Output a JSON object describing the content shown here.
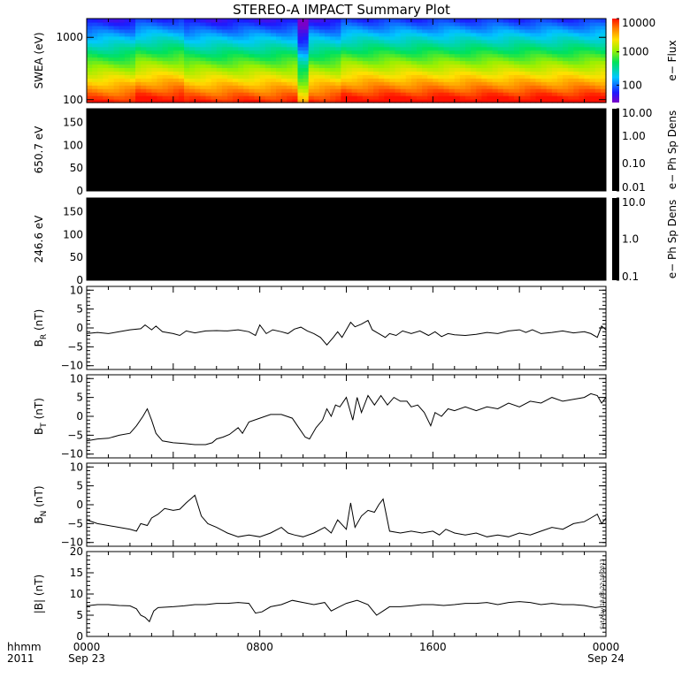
{
  "chart_data": {
    "title": "STEREO-A IMPACT Summary Plot",
    "x_axis": {
      "row1_label": "hhmm",
      "row2_label": "2011",
      "ticks": [
        {
          "hours": 0,
          "time": "0000",
          "date": "Sep 23"
        },
        {
          "hours": 8,
          "time": "0800",
          "date": ""
        },
        {
          "hours": 16,
          "time": "1600",
          "date": ""
        },
        {
          "hours": 24,
          "time": "0000",
          "date": "Sep 24"
        }
      ],
      "range_hours": [
        0,
        24
      ]
    },
    "timestamp_text": "Sat May 18 06:22:19 2013",
    "panels": [
      {
        "id": "swea",
        "type": "heatmap",
        "ylabel": "SWEA (eV)",
        "y_scale": "log",
        "ylim": [
          90,
          2000
        ],
        "y_ticks": [
          100,
          1000
        ],
        "y_tick_labels": [
          "100",
          "1000"
        ],
        "colorbar": {
          "label": "e− Flux",
          "scale": "log",
          "range": [
            30,
            10000
          ],
          "ticks": [
            100,
            1000,
            10000
          ],
          "tick_labels": [
            "100",
            "1000",
            "10000"
          ]
        },
        "energy_profile": "flux falls with energy; red/orange near 100 eV, green near 300–500 eV, blue above 1000 eV",
        "depressed_intervals_hours": [
          [
            9.7,
            10.3
          ]
        ],
        "enhanced_intervals_hours": [
          [
            2.2,
            4.4
          ],
          [
            11.8,
            24
          ]
        ]
      },
      {
        "id": "pad650",
        "type": "heatmap",
        "ylabel": "650.7 eV",
        "ylim": [
          0,
          180
        ],
        "y_ticks": [
          0,
          50,
          100,
          150
        ],
        "y_tick_labels": [
          "0",
          "50",
          "100",
          "150"
        ],
        "fill_color": "#000000",
        "colorbar": {
          "label": "e− Ph Sp Dens",
          "scale": "log",
          "ticks": [
            0.01,
            0.1,
            1,
            10
          ],
          "tick_labels": [
            "0.01",
            "0.10",
            "1.00",
            "10.00"
          ]
        }
      },
      {
        "id": "pad246",
        "type": "heatmap",
        "ylabel": "246.6 eV",
        "ylim": [
          0,
          180
        ],
        "y_ticks": [
          0,
          50,
          100,
          150
        ],
        "y_tick_labels": [
          "0",
          "50",
          "100",
          "150"
        ],
        "fill_color": "#000000",
        "colorbar": {
          "label": "e− Ph Sp Dens",
          "scale": "log",
          "ticks": [
            0.1,
            1,
            10
          ],
          "tick_labels": [
            "0.1",
            "1.0",
            "10.0"
          ]
        }
      },
      {
        "id": "br",
        "type": "line",
        "ylabel_main": "B",
        "ylabel_sub": "R",
        "ylabel_unit": " (nT)",
        "ylim": [
          -11,
          11
        ],
        "y_ticks": [
          -10,
          -5,
          0,
          5,
          10
        ],
        "y_tick_labels": [
          "−10",
          "−5",
          "0",
          "5",
          "10"
        ],
        "points": [
          [
            0,
            -1.5
          ],
          [
            0.5,
            -1.2
          ],
          [
            1,
            -1.5
          ],
          [
            1.5,
            -1
          ],
          [
            2,
            -0.5
          ],
          [
            2.5,
            -0.2
          ],
          [
            2.7,
            0.8
          ],
          [
            3,
            -0.5
          ],
          [
            3.2,
            0.5
          ],
          [
            3.5,
            -1
          ],
          [
            4,
            -1.5
          ],
          [
            4.3,
            -2
          ],
          [
            4.6,
            -0.8
          ],
          [
            5,
            -1.3
          ],
          [
            5.5,
            -0.8
          ],
          [
            6,
            -0.7
          ],
          [
            6.5,
            -0.8
          ],
          [
            7,
            -0.5
          ],
          [
            7.5,
            -1
          ],
          [
            7.8,
            -2
          ],
          [
            8,
            0.8
          ],
          [
            8.3,
            -1.5
          ],
          [
            8.6,
            -0.5
          ],
          [
            9,
            -1
          ],
          [
            9.3,
            -1.5
          ],
          [
            9.6,
            -0.3
          ],
          [
            9.9,
            0.2
          ],
          [
            10.2,
            -0.8
          ],
          [
            10.5,
            -1.5
          ],
          [
            10.8,
            -2.5
          ],
          [
            11.1,
            -4.5
          ],
          [
            11.4,
            -2.5
          ],
          [
            11.6,
            -1
          ],
          [
            11.8,
            -2.5
          ],
          [
            12,
            -0.5
          ],
          [
            12.2,
            1.5
          ],
          [
            12.4,
            0.3
          ],
          [
            12.7,
            1
          ],
          [
            13,
            2
          ],
          [
            13.2,
            -0.5
          ],
          [
            13.5,
            -1.5
          ],
          [
            13.8,
            -2.5
          ],
          [
            14,
            -1.5
          ],
          [
            14.3,
            -2
          ],
          [
            14.6,
            -0.8
          ],
          [
            15,
            -1.5
          ],
          [
            15.4,
            -0.8
          ],
          [
            15.8,
            -2
          ],
          [
            16.1,
            -1
          ],
          [
            16.4,
            -2.3
          ],
          [
            16.7,
            -1.5
          ],
          [
            17,
            -1.8
          ],
          [
            17.5,
            -2
          ],
          [
            18,
            -1.7
          ],
          [
            18.5,
            -1.2
          ],
          [
            19,
            -1.5
          ],
          [
            19.5,
            -0.8
          ],
          [
            20,
            -0.5
          ],
          [
            20.3,
            -1.2
          ],
          [
            20.6,
            -0.5
          ],
          [
            21,
            -1.5
          ],
          [
            21.5,
            -1.2
          ],
          [
            22,
            -0.8
          ],
          [
            22.5,
            -1.3
          ],
          [
            23,
            -1
          ],
          [
            23.3,
            -1.5
          ],
          [
            23.6,
            -2.5
          ],
          [
            23.8,
            0.5
          ],
          [
            24,
            -0.5
          ]
        ]
      },
      {
        "id": "bt",
        "type": "line",
        "ylabel_main": "B",
        "ylabel_sub": "T",
        "ylabel_unit": " (nT)",
        "ylim": [
          -11,
          11
        ],
        "y_ticks": [
          -10,
          -5,
          0,
          5,
          10
        ],
        "y_tick_labels": [
          "−10",
          "−5",
          "0",
          "5",
          "10"
        ],
        "points": [
          [
            0,
            -6.5
          ],
          [
            0.5,
            -6
          ],
          [
            1,
            -5.8
          ],
          [
            1.5,
            -5
          ],
          [
            2,
            -4.5
          ],
          [
            2.3,
            -2.5
          ],
          [
            2.6,
            0
          ],
          [
            2.8,
            2
          ],
          [
            3,
            -1
          ],
          [
            3.2,
            -4.5
          ],
          [
            3.5,
            -6.5
          ],
          [
            4,
            -7
          ],
          [
            4.5,
            -7.2
          ],
          [
            5,
            -7.5
          ],
          [
            5.5,
            -7.5
          ],
          [
            5.8,
            -7
          ],
          [
            6,
            -6
          ],
          [
            6.3,
            -5.5
          ],
          [
            6.6,
            -4.8
          ],
          [
            7,
            -3
          ],
          [
            7.2,
            -4.5
          ],
          [
            7.5,
            -1.5
          ],
          [
            8,
            -0.5
          ],
          [
            8.5,
            0.5
          ],
          [
            9,
            0.5
          ],
          [
            9.5,
            -0.5
          ],
          [
            9.8,
            -3
          ],
          [
            10.1,
            -5.5
          ],
          [
            10.3,
            -6
          ],
          [
            10.6,
            -3
          ],
          [
            10.9,
            -1
          ],
          [
            11.1,
            2
          ],
          [
            11.3,
            0
          ],
          [
            11.5,
            3
          ],
          [
            11.7,
            2.5
          ],
          [
            12,
            5
          ],
          [
            12.3,
            -1
          ],
          [
            12.5,
            5
          ],
          [
            12.7,
            1
          ],
          [
            13,
            5.5
          ],
          [
            13.3,
            3
          ],
          [
            13.6,
            5.5
          ],
          [
            13.9,
            3
          ],
          [
            14.2,
            5
          ],
          [
            14.5,
            4
          ],
          [
            14.8,
            4
          ],
          [
            15,
            2.5
          ],
          [
            15.3,
            3
          ],
          [
            15.6,
            1
          ],
          [
            15.9,
            -2.5
          ],
          [
            16.1,
            1
          ],
          [
            16.4,
            0
          ],
          [
            16.7,
            2
          ],
          [
            17,
            1.5
          ],
          [
            17.5,
            2.5
          ],
          [
            18,
            1.5
          ],
          [
            18.5,
            2.5
          ],
          [
            19,
            2
          ],
          [
            19.5,
            3.5
          ],
          [
            20,
            2.5
          ],
          [
            20.5,
            4
          ],
          [
            21,
            3.5
          ],
          [
            21.5,
            5
          ],
          [
            22,
            4
          ],
          [
            22.5,
            4.5
          ],
          [
            23,
            5
          ],
          [
            23.3,
            6
          ],
          [
            23.6,
            5.5
          ],
          [
            23.8,
            3.5
          ],
          [
            24,
            5
          ]
        ]
      },
      {
        "id": "bn",
        "type": "line",
        "ylabel_main": "B",
        "ylabel_sub": "N",
        "ylabel_unit": " (nT)",
        "ylim": [
          -11,
          11
        ],
        "y_ticks": [
          -10,
          -5,
          0,
          5,
          10
        ],
        "y_tick_labels": [
          "−10",
          "−5",
          "0",
          "5",
          "10"
        ],
        "points": [
          [
            0,
            -4
          ],
          [
            0.5,
            -5
          ],
          [
            1,
            -5.5
          ],
          [
            1.5,
            -6
          ],
          [
            2,
            -6.5
          ],
          [
            2.3,
            -7
          ],
          [
            2.5,
            -5
          ],
          [
            2.8,
            -5.5
          ],
          [
            3,
            -3.5
          ],
          [
            3.3,
            -2.5
          ],
          [
            3.6,
            -1
          ],
          [
            4,
            -1.5
          ],
          [
            4.3,
            -1.2
          ],
          [
            4.6,
            0.5
          ],
          [
            4.8,
            1.5
          ],
          [
            5,
            2.5
          ],
          [
            5.3,
            -3
          ],
          [
            5.6,
            -5
          ],
          [
            6,
            -6
          ],
          [
            6.5,
            -7.5
          ],
          [
            7,
            -8.5
          ],
          [
            7.5,
            -8
          ],
          [
            8,
            -8.5
          ],
          [
            8.5,
            -7.5
          ],
          [
            9,
            -6
          ],
          [
            9.3,
            -7.5
          ],
          [
            9.6,
            -8
          ],
          [
            10,
            -8.5
          ],
          [
            10.5,
            -7.5
          ],
          [
            11,
            -6
          ],
          [
            11.3,
            -7.5
          ],
          [
            11.6,
            -4
          ],
          [
            12,
            -6.5
          ],
          [
            12.2,
            0.5
          ],
          [
            12.4,
            -6
          ],
          [
            12.7,
            -3
          ],
          [
            13,
            -1.5
          ],
          [
            13.3,
            -2
          ],
          [
            13.5,
            0
          ],
          [
            13.7,
            1.5
          ],
          [
            14,
            -7
          ],
          [
            14.5,
            -7.5
          ],
          [
            15,
            -7
          ],
          [
            15.5,
            -7.5
          ],
          [
            16,
            -7
          ],
          [
            16.3,
            -8
          ],
          [
            16.6,
            -6.5
          ],
          [
            17,
            -7.5
          ],
          [
            17.5,
            -8
          ],
          [
            18,
            -7.5
          ],
          [
            18.5,
            -8.5
          ],
          [
            19,
            -8
          ],
          [
            19.5,
            -8.5
          ],
          [
            20,
            -7.5
          ],
          [
            20.5,
            -8
          ],
          [
            21,
            -7
          ],
          [
            21.5,
            -6
          ],
          [
            22,
            -6.5
          ],
          [
            22.5,
            -5
          ],
          [
            23,
            -4.5
          ],
          [
            23.3,
            -3.5
          ],
          [
            23.6,
            -2.5
          ],
          [
            23.8,
            -5
          ],
          [
            24,
            -3.5
          ]
        ]
      },
      {
        "id": "bmag",
        "type": "line",
        "ylabel_main": "|B|",
        "ylabel_sub": "",
        "ylabel_unit": " (nT)",
        "ylim": [
          0,
          20
        ],
        "y_ticks": [
          0,
          5,
          10,
          15,
          20
        ],
        "y_tick_labels": [
          "0",
          "5",
          "10",
          "15",
          "20"
        ],
        "points": [
          [
            0,
            7.2
          ],
          [
            0.5,
            7.5
          ],
          [
            1,
            7.5
          ],
          [
            1.5,
            7.3
          ],
          [
            2,
            7.2
          ],
          [
            2.3,
            6.5
          ],
          [
            2.5,
            5
          ],
          [
            2.7,
            4.5
          ],
          [
            2.9,
            3.5
          ],
          [
            3.1,
            6
          ],
          [
            3.3,
            6.8
          ],
          [
            4,
            7
          ],
          [
            4.5,
            7.2
          ],
          [
            5,
            7.5
          ],
          [
            5.5,
            7.5
          ],
          [
            6,
            7.8
          ],
          [
            6.5,
            7.8
          ],
          [
            7,
            8
          ],
          [
            7.5,
            7.8
          ],
          [
            7.8,
            5.5
          ],
          [
            8.1,
            5.8
          ],
          [
            8.5,
            7
          ],
          [
            9,
            7.5
          ],
          [
            9.5,
            8.5
          ],
          [
            10,
            8
          ],
          [
            10.5,
            7.5
          ],
          [
            11,
            8
          ],
          [
            11.3,
            6
          ],
          [
            11.6,
            6.8
          ],
          [
            12,
            7.8
          ],
          [
            12.5,
            8.5
          ],
          [
            13,
            7.5
          ],
          [
            13.4,
            5
          ],
          [
            13.7,
            6
          ],
          [
            14,
            7
          ],
          [
            14.5,
            7
          ],
          [
            15,
            7.2
          ],
          [
            15.5,
            7.5
          ],
          [
            16,
            7.5
          ],
          [
            16.5,
            7.3
          ],
          [
            17,
            7.5
          ],
          [
            17.5,
            7.8
          ],
          [
            18,
            7.8
          ],
          [
            18.5,
            8
          ],
          [
            19,
            7.5
          ],
          [
            19.5,
            8
          ],
          [
            20,
            8.2
          ],
          [
            20.5,
            8
          ],
          [
            21,
            7.5
          ],
          [
            21.5,
            7.8
          ],
          [
            22,
            7.5
          ],
          [
            22.5,
            7.5
          ],
          [
            23,
            7.3
          ],
          [
            23.5,
            6.8
          ],
          [
            23.8,
            7
          ],
          [
            24,
            7
          ]
        ]
      }
    ]
  }
}
